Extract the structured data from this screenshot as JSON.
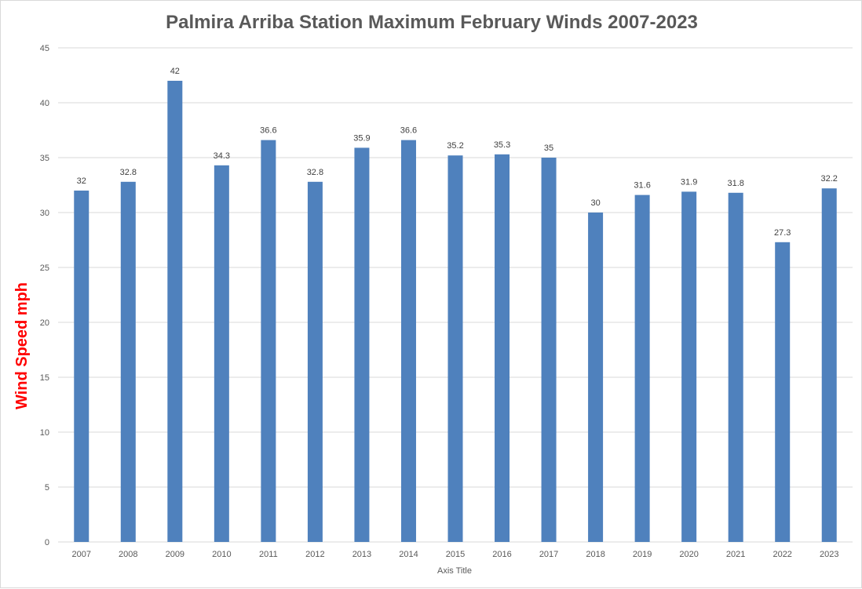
{
  "chart_data": {
    "type": "bar",
    "title": "Palmira Arriba Station Maximum February Winds 2007-2023",
    "xlabel": "Axis Title",
    "ylabel": "Wind Speed mph",
    "categories": [
      "2007",
      "2008",
      "2009",
      "2010",
      "2011",
      "2012",
      "2013",
      "2014",
      "2015",
      "2016",
      "2017",
      "2018",
      "2019",
      "2020",
      "2021",
      "2022",
      "2023"
    ],
    "values": [
      32,
      32.8,
      42,
      34.3,
      36.6,
      32.8,
      35.9,
      36.6,
      35.2,
      35.3,
      35,
      30,
      31.6,
      31.9,
      31.8,
      27.3,
      32.2
    ],
    "ylim": [
      0,
      45
    ],
    "yticks": [
      0,
      5,
      10,
      15,
      20,
      25,
      30,
      35,
      40,
      45
    ],
    "grid": true,
    "data_labels": true,
    "legend": "none",
    "colors": {
      "bar": "#4f81bd",
      "grid": "#d9d9d9",
      "ylabel": "#ff0000",
      "title": "#595959"
    }
  }
}
